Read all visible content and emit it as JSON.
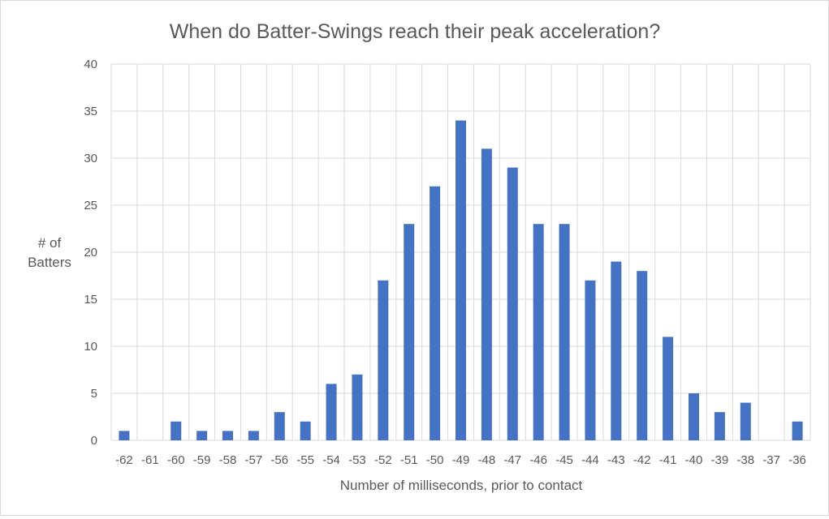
{
  "chart_data": {
    "type": "bar",
    "title": "When do Batter-Swings reach their peak acceleration?",
    "xlabel": "Number of milliseconds, prior to contact",
    "ylabel_lines": [
      "# of",
      "Batters"
    ],
    "categories": [
      "-62",
      "-61",
      "-60",
      "-59",
      "-58",
      "-57",
      "-56",
      "-55",
      "-54",
      "-53",
      "-52",
      "-51",
      "-50",
      "-49",
      "-48",
      "-47",
      "-46",
      "-45",
      "-44",
      "-43",
      "-42",
      "-41",
      "-40",
      "-39",
      "-38",
      "-37",
      "-36"
    ],
    "values": [
      1,
      0,
      2,
      1,
      1,
      1,
      3,
      2,
      6,
      7,
      17,
      23,
      27,
      34,
      31,
      29,
      23,
      23,
      17,
      19,
      18,
      11,
      5,
      3,
      4,
      0,
      2
    ],
    "ylim": [
      0,
      40
    ],
    "yticks": [
      0,
      5,
      10,
      15,
      20,
      25,
      30,
      35,
      40
    ],
    "grid": true,
    "bar_color": "#4472c4",
    "grid_color": "#d9d9d9"
  }
}
